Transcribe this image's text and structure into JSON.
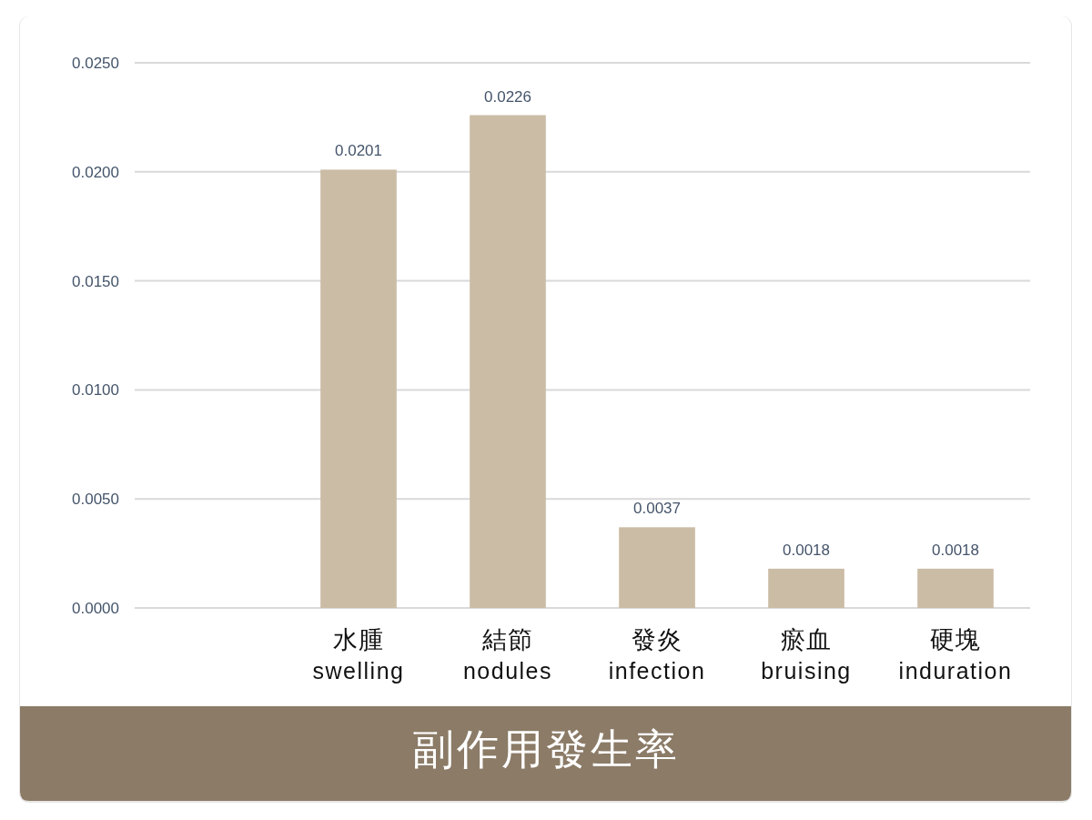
{
  "chart_data": {
    "type": "bar",
    "title": "副作用發生率",
    "categories": [
      null,
      "水腫\nswelling",
      "結節\nnodules",
      "發炎\ninfection",
      "瘀血\nbruising",
      "硬塊\ninduration"
    ],
    "values": [
      null,
      0.0201,
      0.0226,
      0.0037,
      0.0018,
      0.0018
    ],
    "color": "#cbbca6",
    "ylim": [
      0,
      0.025
    ],
    "yticks": [
      {
        "value": 0,
        "label": "0.0000"
      },
      {
        "value": 0.005,
        "label": "0.0050"
      },
      {
        "value": 0.01,
        "label": "0.0100"
      },
      {
        "value": 0.015,
        "label": "0.0150"
      },
      {
        "value": 0.02,
        "label": "0.0200"
      },
      {
        "value": 0.025,
        "label": "0.0250"
      }
    ],
    "grid": "y",
    "data_labels": true
  }
}
